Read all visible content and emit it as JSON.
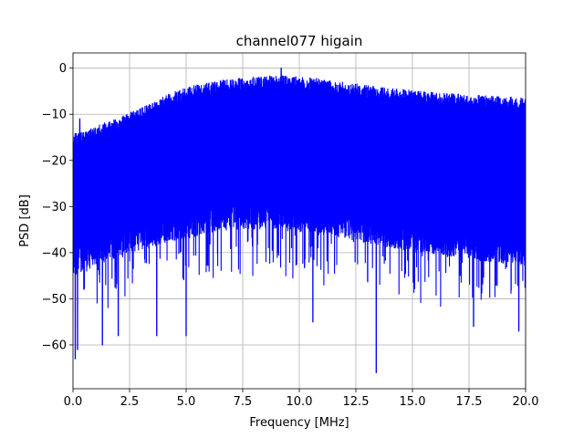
{
  "chart_data": {
    "type": "line",
    "title": "channel077 higain",
    "xlabel": "Frequency [MHz]",
    "ylabel": "PSD [dB]",
    "xlim": [
      0,
      20
    ],
    "ylim": [
      -69.5,
      3.3
    ],
    "xticks": [
      0,
      2.5,
      5,
      7.5,
      10,
      12.5,
      15,
      17.5,
      20
    ],
    "xtick_labels": [
      "0.0",
      "2.5",
      "5.0",
      "7.5",
      "10.0",
      "12.5",
      "15.0",
      "17.5",
      "20.0"
    ],
    "yticks": [
      0,
      -10,
      -20,
      -30,
      -40,
      -50,
      -60
    ],
    "ytick_labels": [
      "0",
      "−10",
      "−20",
      "−30",
      "−40",
      "−50",
      "−60"
    ],
    "grid": true,
    "series": [
      {
        "color": "#0000ff",
        "envelope_x": [
          0,
          0.5,
          1.0,
          1.5,
          2.0,
          2.5,
          3.0,
          3.5,
          4.0,
          4.5,
          5.0,
          5.5,
          6.0,
          6.5,
          7.0,
          7.5,
          8.0,
          8.5,
          9.0,
          9.5,
          10.0,
          10.5,
          11.0,
          11.5,
          12.0,
          12.5,
          13.0,
          13.5,
          14.0,
          14.5,
          15.0,
          15.5,
          16.0,
          16.5,
          17.0,
          17.5,
          18.0,
          18.5,
          19.0,
          19.5,
          20.0
        ],
        "upper_db": [
          -14,
          -13.5,
          -12.5,
          -11.5,
          -10.5,
          -9.5,
          -8.5,
          -7.5,
          -6,
          -5,
          -4,
          -3.5,
          -3,
          -2.5,
          -2.3,
          -2,
          -1.8,
          -1.6,
          -1.5,
          -1.6,
          -1.8,
          -2,
          -2.3,
          -2.6,
          -3,
          -3.3,
          -3.6,
          -4,
          -4.3,
          -4.5,
          -4.7,
          -5,
          -5.2,
          -5.4,
          -5.5,
          -5.7,
          -5.8,
          -6,
          -6,
          -6.2,
          -6.3
        ],
        "lower_db": [
          -45,
          -44,
          -43,
          -42,
          -41,
          -40,
          -39.5,
          -39,
          -38,
          -37.5,
          -37,
          -36.5,
          -36,
          -35.5,
          -35,
          -35,
          -35,
          -35,
          -35,
          -35,
          -35.5,
          -36,
          -36.5,
          -37,
          -37,
          -37.5,
          -38,
          -38.5,
          -39,
          -39.5,
          -40,
          -40,
          -40.5,
          -41,
          -41,
          -41.5,
          -42,
          -42,
          -42.5,
          -42.5,
          -43
        ],
        "notable_dips": [
          {
            "x": 0.1,
            "y": -63
          },
          {
            "x": 0.2,
            "y": -61
          },
          {
            "x": 1.3,
            "y": -60
          },
          {
            "x": 2.0,
            "y": -58
          },
          {
            "x": 3.7,
            "y": -58
          },
          {
            "x": 5.0,
            "y": -58
          },
          {
            "x": 10.6,
            "y": -55
          },
          {
            "x": 13.4,
            "y": -66
          },
          {
            "x": 17.7,
            "y": -56
          },
          {
            "x": 19.7,
            "y": -57
          }
        ],
        "notable_peaks": [
          {
            "x": 9.2,
            "y": 0
          },
          {
            "x": 0.3,
            "y": -11
          }
        ]
      }
    ]
  }
}
